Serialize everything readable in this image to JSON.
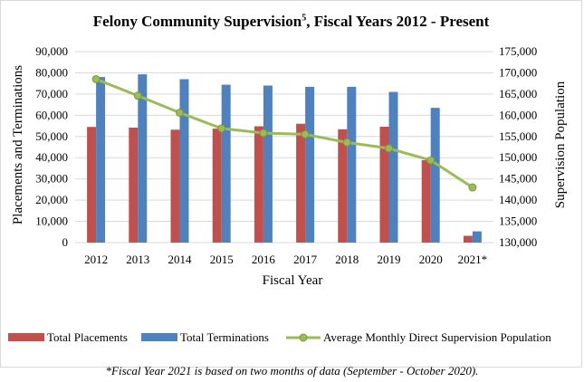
{
  "chart_data": {
    "type": "bar",
    "title_main": "Felony Community Supervision",
    "title_sup": "5",
    "title_rest": ", Fiscal Years 2012 - Present",
    "categories": [
      "2012",
      "2013",
      "2014",
      "2015",
      "2016",
      "2017",
      "2018",
      "2019",
      "2020",
      "2021*"
    ],
    "series": [
      {
        "name": "Total Placements",
        "kind": "bar",
        "axis": "left",
        "color": "#c0504d",
        "values": [
          54500,
          54200,
          53200,
          53700,
          54800,
          56000,
          53400,
          54600,
          38800,
          3200
        ]
      },
      {
        "name": "Total Terminations",
        "kind": "bar",
        "axis": "left",
        "color": "#4f81bd",
        "values": [
          78000,
          79300,
          77000,
          74400,
          74000,
          73400,
          73400,
          71000,
          63500,
          5300
        ]
      },
      {
        "name": "Average Monthly Direct Supervision Population",
        "kind": "line",
        "axis": "right",
        "color": "#9bbb59",
        "values": [
          168500,
          164600,
          160600,
          156900,
          155800,
          155500,
          153600,
          152200,
          149400,
          143000
        ]
      }
    ],
    "xlabel": "Fiscal Year",
    "ylabel_left": "Placements and Terminations",
    "ylabel_right": "Supervision Population",
    "ylim_left": [
      0,
      90000
    ],
    "ylim_right": [
      130000,
      175000
    ],
    "yticks_left": [
      "0",
      "10,000",
      "20,000",
      "30,000",
      "40,000",
      "50,000",
      "60,000",
      "70,000",
      "80,000",
      "90,000"
    ],
    "yticks_right": [
      "130,000",
      "135,000",
      "140,000",
      "145,000",
      "150,000",
      "155,000",
      "160,000",
      "165,000",
      "170,000",
      "175,000"
    ],
    "grid": true,
    "legend_position": "bottom"
  },
  "footnote": "*Fiscal Year 2021 is based on two months of data (September - October 2020)."
}
